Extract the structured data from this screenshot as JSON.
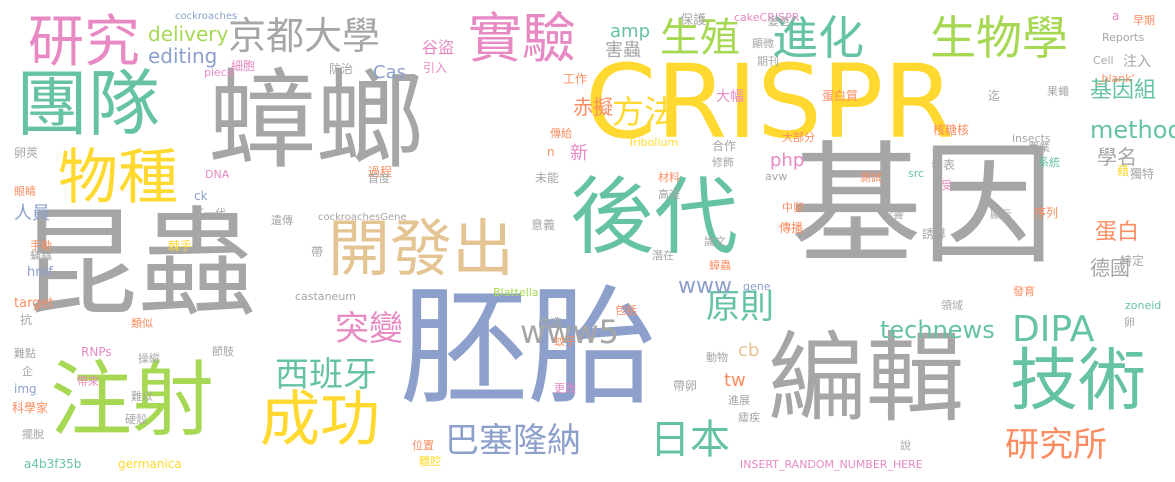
{
  "palette": {
    "gray": "#a6a6a6",
    "blue": "#8da0cb",
    "green": "#66c2a5",
    "yellow": "#ffd92f",
    "pink": "#e78ac3",
    "lime": "#a6d854",
    "orange": "#fc8d62",
    "tan": "#e5c494"
  },
  "words": {
    "w1": "蟑螂",
    "w2": "昆蟲",
    "w3": "胚胎",
    "w4": "基因",
    "w5": "CRISPR",
    "w6": "編輯",
    "w7": "後代",
    "w8": "注射",
    "w9": "團隊",
    "w10": "技術",
    "w11": "開發出",
    "w12": "成功",
    "w13": "物種",
    "w14": "研究",
    "w15": "實驗",
    "w16": "進化",
    "w17": "生物學",
    "w18": "生殖",
    "w19": "京都大學",
    "w20": "DIPA",
    "w21": "日本",
    "w22": "巴塞隆納",
    "w23": "西班牙",
    "w24": "研究所",
    "w25": "突變",
    "w26": "原則",
    "w27": "方法",
    "w28": "www5",
    "w29": "technews",
    "w30": "基因組",
    "w31": "method",
    "w32": "蛋白",
    "w33": "德國",
    "w34": "學名",
    "w35": "www",
    "w36": "delivery",
    "w37": "editing",
    "w38": "Cas",
    "w39": "赤擬",
    "w40": "amp",
    "w41": "害蟲",
    "w42": "谷盜",
    "w43": "php",
    "w44": "tw",
    "w45": "cb",
    "w46": "人員",
    "w47": "核糖核",
    "w48": "注入",
    "w49": "新",
    "w50": "大幅",
    "w51": "Tribolium",
    "w52": "insects",
    "w53": "zoneid",
    "w54": "Blattella",
    "w55": "castaneum",
    "w56": "germanica",
    "w57": "a4b3f35b",
    "w58": "INSERT_RANDOM_NUMBER_HERE",
    "w59": "cockroaches",
    "w60": "cakeCRISPR",
    "w61": "cockroachesGene",
    "w62": "Reports",
    "w63": "Cell",
    "w64": "_blank'",
    "w65": "piece",
    "w66": "href",
    "w67": "target",
    "w68": "img",
    "w69": "RNPs",
    "w70": "DNA",
    "w71": "avw",
    "w72": "src",
    "w73": "gene",
    "w74": "ck",
    "w75": "n",
    "w76": "a",
    "w77": "保護",
    "w78": "防治",
    "w79": "細胞",
    "w80": "引入",
    "w81": "工作",
    "w82": "變色",
    "w83": "顯微",
    "w84": "期刊",
    "w85": "蛋白質",
    "w86": "早期",
    "w87": "迄",
    "w88": "果蠅",
    "w89": "農業",
    "w90": "傳給",
    "w91": "合作",
    "w92": "修飾",
    "w93": "大部分",
    "w94": "系統",
    "w95": "發表",
    "w96": "測試",
    "w97": "獨特",
    "w98": "藉",
    "w99": "受",
    "w100": "材料",
    "w101": "高達",
    "w102": "未能",
    "w103": "中卵",
    "w104": "顯示",
    "w105": "序列",
    "w106": "影響",
    "w107": "傳播",
    "w108": "誘導",
    "w109": "論文",
    "w110": "潛在",
    "w111": "蟑蟲",
    "w112": "特定",
    "w113": "包括",
    "w114": "發育",
    "w115": "卵",
    "w116": "領域",
    "w117": "改造",
    "w118": "蚊子",
    "w119": "動物",
    "w120": "更改",
    "w121": "帶卵",
    "w122": "進展",
    "w123": "瘧疾",
    "w124": "說",
    "w125": "位置",
    "w126": "體腔",
    "w127": "帶",
    "w128": "遺傳",
    "w129": "過程",
    "w130": "首度",
    "w131": "意義",
    "w132": "卵莢",
    "w133": "眼睛",
    "w134": "下一代",
    "w135": "手動",
    "w136": "蟎蟲",
    "w137": "棘手",
    "w138": "抗",
    "w139": "類似",
    "w140": "難點",
    "w141": "企",
    "w142": "操縱",
    "w143": "節肢",
    "w144": "帶來",
    "w145": "難以",
    "w146": "科學家",
    "w147": "硬殼",
    "w148": "擺脫"
  }
}
